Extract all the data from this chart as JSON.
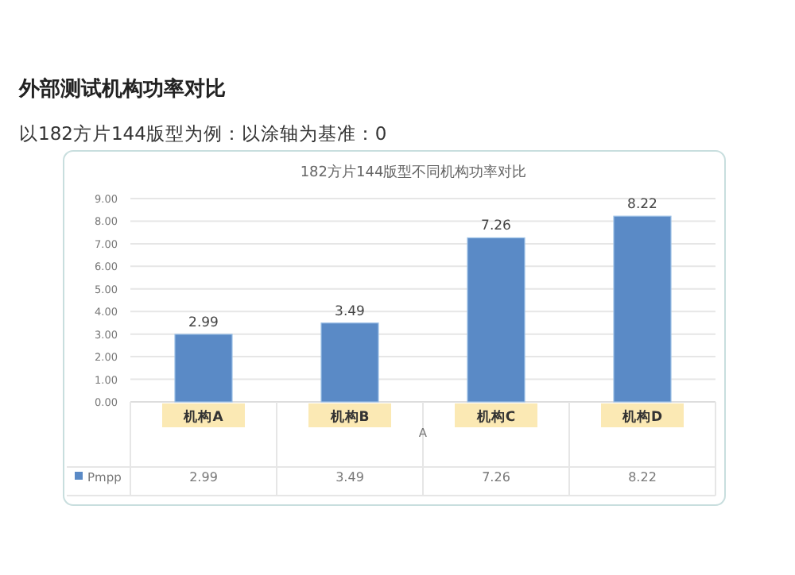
{
  "chart_data": {
    "type": "bar",
    "title": "外部测试机构功率对比",
    "subtitle": "以182方片144版型为例：以涂轴为基准：0",
    "annotations": [
      "182方片144版型不同机构功率对比",
      "2.99",
      "3.49",
      "7.26",
      "8.22"
    ],
    "xlabel": "A",
    "categories": [
      "机构A",
      "机构B",
      "机构C",
      "机构D"
    ],
    "series": [
      {
        "name": "Pmpp",
        "color": "#5a8ac6",
        "values": [
          2.99,
          3.49,
          7.26,
          8.22
        ],
        "value_labels": [
          "2.99",
          "3.49",
          "7.26",
          "8.22"
        ]
      }
    ],
    "ylim": [
      0,
      9
    ],
    "yticks": [
      {
        "value": 0,
        "label": "0.00"
      },
      {
        "value": 1,
        "label": "1.00"
      },
      {
        "value": 2,
        "label": "2.00"
      },
      {
        "value": 3,
        "label": "3.00"
      },
      {
        "value": 4,
        "label": "4.00"
      },
      {
        "value": 5,
        "label": "5.00"
      },
      {
        "value": 6,
        "label": "6.00"
      },
      {
        "value": 7,
        "label": "7.00"
      },
      {
        "value": 8,
        "label": "8.00"
      },
      {
        "value": 9,
        "label": "9.00"
      }
    ],
    "grid": "y",
    "legend": "bottom left"
  }
}
